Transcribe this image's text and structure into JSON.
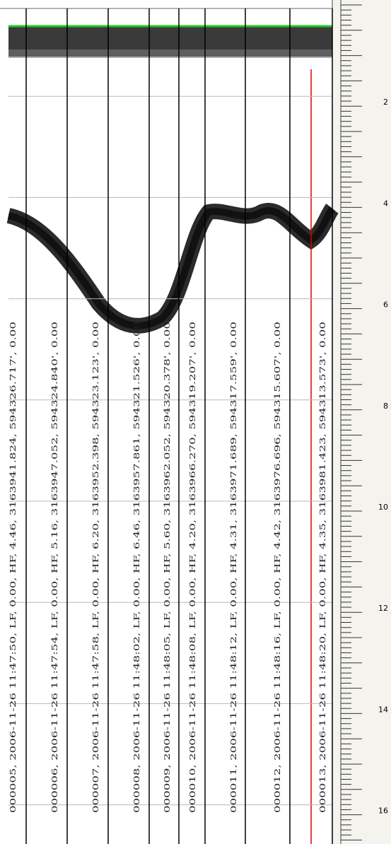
{
  "records": [
    "000005, 2006-11-26   11:47:50, LF, 0.00, HF, 4.46, 3163941.824, 594326.717', 0.00",
    "000006, 2006-11-26   11:47:54, LF, 0.00, HF, 5.16, 3163947.052, 594324.840', 0.00",
    "000007, 2006-11-26   11:47:58, LF, 0.00, HF, 6.20, 3163952.398, 594323.123', 0.00",
    "000008, 2006-11-26   11:48:02, LF, 0.00, HF, 6.46, 3163957.861, 594321.526', 0.00",
    "000009, 2006-11-26   11:48:05, LF, 0.00, HF, 5.60, 3163962.052, 594320.378', 0.00",
    "000010, 2006-11-26   11:48:08, LF, 0.00, HF, 4.20, 3163966.270, 594319.207', 0.00",
    "000011, 2006-11-26   11:48:12, LF, 0.00, HF, 4.31, 3163971.689, 594317.559', 0.00",
    "000012, 2006-11-26   11:48:16, LF, 0.00, HF, 4.42, 3163976.696, 594315.607', 0.00",
    "000013, 2006-11-26   11:48:20, LF, 0.00, HF, 4.35, 3163981.423, 594313.573', 0.00"
  ],
  "depth_scale": [
    2,
    4,
    6,
    8,
    10,
    12,
    14,
    16
  ]
}
